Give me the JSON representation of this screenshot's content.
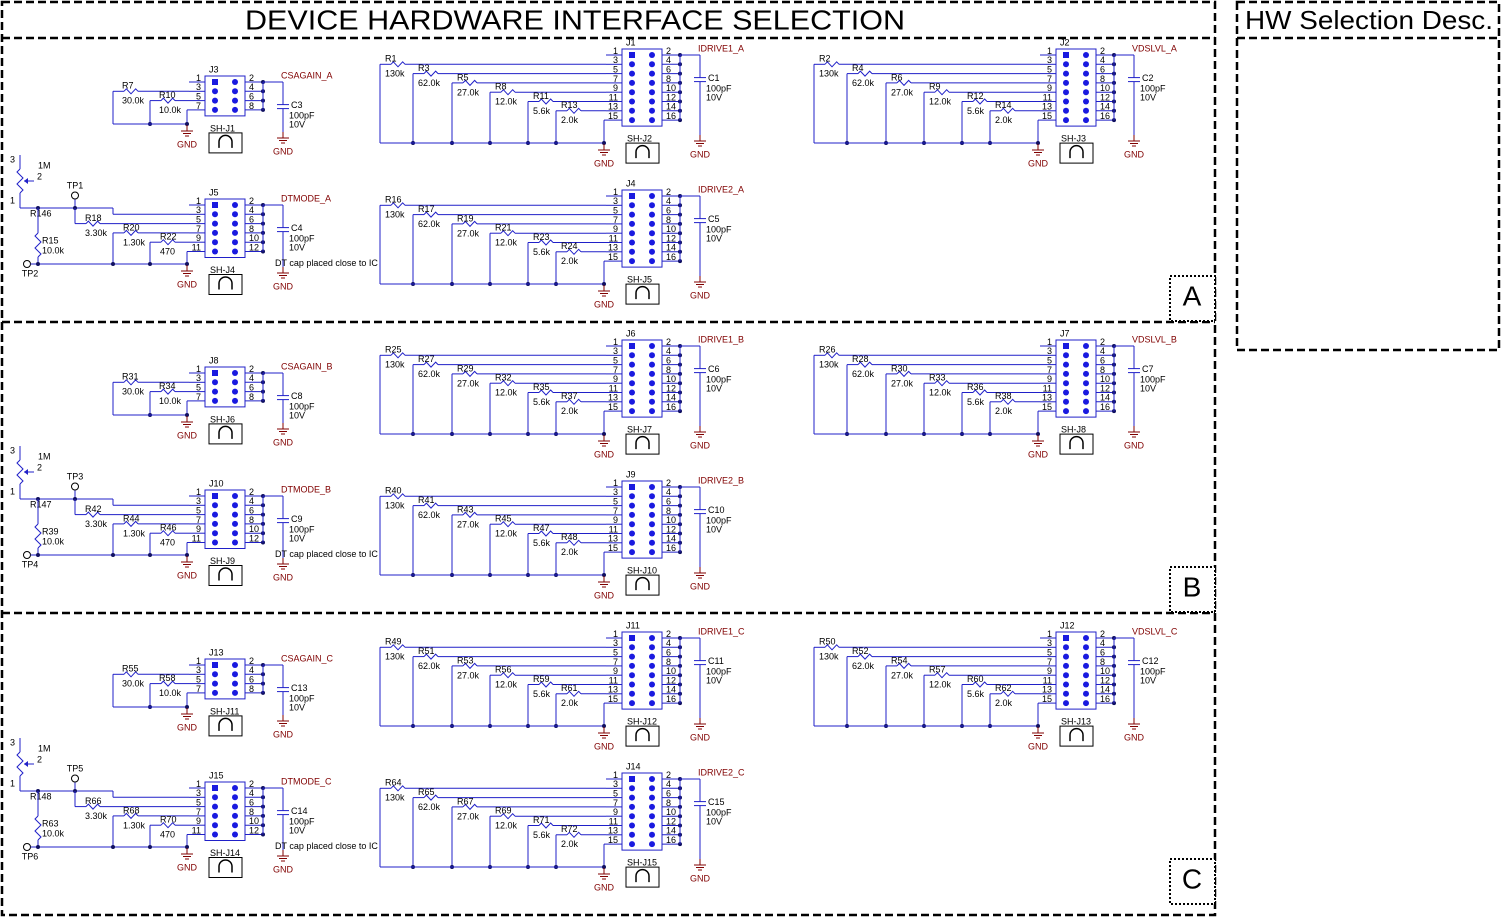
{
  "header": {
    "title": "DEVICE HARDWARE INTERFACE SELECTION",
    "side_title": "HW Selection Desc."
  },
  "common": {
    "gnd": "GND",
    "pins": [
      "1",
      "2",
      "3",
      "4",
      "5",
      "6",
      "7",
      "8",
      "9",
      "10",
      "11",
      "12",
      "13",
      "14",
      "15",
      "16"
    ],
    "cap_value": "100pF",
    "cap_voltage": "10V",
    "dt_note": "DT cap placed close to IC",
    "pot_value": "1M",
    "pot_pins": [
      "3",
      "2",
      "1"
    ]
  },
  "sections": [
    {
      "label": "A",
      "csagain": {
        "connector": "J3",
        "shunt": "SH-J1",
        "net": "CSAGAIN_A",
        "cap": "C3",
        "resistors": [
          [
            "R7",
            "30.0k"
          ],
          [
            "R10",
            "10.0k"
          ]
        ]
      },
      "dtmode": {
        "connector": "J5",
        "shunt": "SH-J4",
        "net": "DTMODE_A",
        "cap": "C4",
        "pot": "R146",
        "tp_top": "TP1",
        "tp_bottom": "TP2",
        "pulldown": [
          "R15",
          "10.0k"
        ],
        "resistors": [
          [
            "R18",
            "3.30k"
          ],
          [
            "R20",
            "1.30k"
          ],
          [
            "R22",
            "470"
          ]
        ]
      },
      "idrive1": {
        "connector": "J1",
        "shunt": "SH-J2",
        "net": "IDRIVE1_A",
        "cap": "C1",
        "resistors": [
          [
            "R1",
            "130k"
          ],
          [
            "R3",
            "62.0k"
          ],
          [
            "R5",
            "27.0k"
          ],
          [
            "R8",
            "12.0k"
          ],
          [
            "R11",
            "5.6k"
          ],
          [
            "R13",
            "2.0k"
          ]
        ]
      },
      "idrive2": {
        "connector": "J4",
        "shunt": "SH-J5",
        "net": "IDRIVE2_A",
        "cap": "C5",
        "resistors": [
          [
            "R16",
            "130k"
          ],
          [
            "R17",
            "62.0k"
          ],
          [
            "R19",
            "27.0k"
          ],
          [
            "R21",
            "12.0k"
          ],
          [
            "R23",
            "5.6k"
          ],
          [
            "R24",
            "2.0k"
          ]
        ]
      },
      "vdslvl": {
        "connector": "J2",
        "shunt": "SH-J3",
        "net": "VDSLVL_A",
        "cap": "C2",
        "resistors": [
          [
            "R2",
            "130k"
          ],
          [
            "R4",
            "62.0k"
          ],
          [
            "R6",
            "27.0k"
          ],
          [
            "R9",
            "12.0k"
          ],
          [
            "R12",
            "5.6k"
          ],
          [
            "R14",
            "2.0k"
          ]
        ]
      }
    },
    {
      "label": "B",
      "csagain": {
        "connector": "J8",
        "shunt": "SH-J6",
        "net": "CSAGAIN_B",
        "cap": "C8",
        "resistors": [
          [
            "R31",
            "30.0k"
          ],
          [
            "R34",
            "10.0k"
          ]
        ]
      },
      "dtmode": {
        "connector": "J10",
        "shunt": "SH-J9",
        "net": "DTMODE_B",
        "cap": "C9",
        "pot": "R147",
        "tp_top": "TP3",
        "tp_bottom": "TP4",
        "pulldown": [
          "R39",
          "10.0k"
        ],
        "resistors": [
          [
            "R42",
            "3.30k"
          ],
          [
            "R44",
            "1.30k"
          ],
          [
            "R46",
            "470"
          ]
        ]
      },
      "idrive1": {
        "connector": "J6",
        "shunt": "SH-J7",
        "net": "IDRIVE1_B",
        "cap": "C6",
        "resistors": [
          [
            "R25",
            "130k"
          ],
          [
            "R27",
            "62.0k"
          ],
          [
            "R29",
            "27.0k"
          ],
          [
            "R32",
            "12.0k"
          ],
          [
            "R35",
            "5.6k"
          ],
          [
            "R37",
            "2.0k"
          ]
        ]
      },
      "idrive2": {
        "connector": "J9",
        "shunt": "SH-J10",
        "net": "IDRIVE2_B",
        "cap": "C10",
        "resistors": [
          [
            "R40",
            "130k"
          ],
          [
            "R41",
            "62.0k"
          ],
          [
            "R43",
            "27.0k"
          ],
          [
            "R45",
            "12.0k"
          ],
          [
            "R47",
            "5.6k"
          ],
          [
            "R48",
            "2.0k"
          ]
        ]
      },
      "vdslvl": {
        "connector": "J7",
        "shunt": "SH-J8",
        "net": "VDSLVL_B",
        "cap": "C7",
        "resistors": [
          [
            "R26",
            "130k"
          ],
          [
            "R28",
            "62.0k"
          ],
          [
            "R30",
            "27.0k"
          ],
          [
            "R33",
            "12.0k"
          ],
          [
            "R36",
            "5.6k"
          ],
          [
            "R38",
            "2.0k"
          ]
        ]
      }
    },
    {
      "label": "C",
      "csagain": {
        "connector": "J13",
        "shunt": "SH-J11",
        "net": "CSAGAIN_C",
        "cap": "C13",
        "resistors": [
          [
            "R55",
            "30.0k"
          ],
          [
            "R58",
            "10.0k"
          ]
        ]
      },
      "dtmode": {
        "connector": "J15",
        "shunt": "SH-J14",
        "net": "DTMODE_C",
        "cap": "C14",
        "pot": "R148",
        "tp_top": "TP5",
        "tp_bottom": "TP6",
        "pulldown": [
          "R63",
          "10.0k"
        ],
        "resistors": [
          [
            "R66",
            "3.30k"
          ],
          [
            "R68",
            "1.30k"
          ],
          [
            "R70",
            "470"
          ]
        ]
      },
      "idrive1": {
        "connector": "J11",
        "shunt": "SH-J12",
        "net": "IDRIVE1_C",
        "cap": "C11",
        "resistors": [
          [
            "R49",
            "130k"
          ],
          [
            "R51",
            "62.0k"
          ],
          [
            "R53",
            "27.0k"
          ],
          [
            "R56",
            "12.0k"
          ],
          [
            "R59",
            "5.6k"
          ],
          [
            "R61",
            "2.0k"
          ]
        ]
      },
      "idrive2": {
        "connector": "J14",
        "shunt": "SH-J15",
        "net": "IDRIVE2_C",
        "cap": "C15",
        "resistors": [
          [
            "R64",
            "130k"
          ],
          [
            "R65",
            "62.0k"
          ],
          [
            "R67",
            "27.0k"
          ],
          [
            "R69",
            "12.0k"
          ],
          [
            "R71",
            "5.6k"
          ],
          [
            "R72",
            "2.0k"
          ]
        ]
      },
      "vdslvl": {
        "connector": "J12",
        "shunt": "SH-J13",
        "net": "VDSLVL_C",
        "cap": "C12",
        "resistors": [
          [
            "R50",
            "130k"
          ],
          [
            "R52",
            "62.0k"
          ],
          [
            "R54",
            "27.0k"
          ],
          [
            "R57",
            "12.0k"
          ],
          [
            "R60",
            "5.6k"
          ],
          [
            "R62",
            "2.0k"
          ]
        ]
      }
    }
  ]
}
